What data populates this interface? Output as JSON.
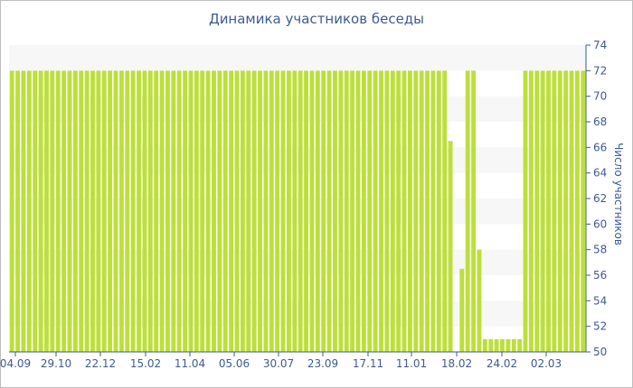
{
  "chart_data": {
    "type": "bar",
    "title": "Динамика участников беседы",
    "ylabel": "Число участников",
    "ylim": [
      50,
      74
    ],
    "yticks": [
      50,
      52,
      54,
      56,
      58,
      60,
      62,
      64,
      66,
      68,
      70,
      72,
      74
    ],
    "x_tick_labels": [
      "04.09",
      "29.10",
      "22.12",
      "15.02",
      "11.04",
      "05.06",
      "30.07",
      "23.09",
      "17.11",
      "11.01",
      "18.02",
      "24.02",
      "02.03"
    ],
    "values": [
      72,
      72,
      72,
      72,
      72,
      72,
      72,
      72,
      72,
      72,
      72,
      72,
      72,
      72,
      72,
      72,
      72,
      72,
      72,
      72,
      72,
      72,
      72,
      72,
      72,
      72,
      72,
      72,
      72,
      72,
      72,
      72,
      72,
      72,
      72,
      72,
      72,
      72,
      72,
      72,
      72,
      72,
      72,
      72,
      72,
      72,
      72,
      72,
      72,
      72,
      72,
      72,
      72,
      72,
      72,
      72,
      72,
      72,
      72,
      72,
      72,
      72,
      72,
      72,
      72,
      72,
      72,
      72,
      72,
      72,
      72,
      72,
      72,
      72,
      72,
      72,
      66.5,
      null,
      56.5,
      72,
      72,
      58,
      51,
      51,
      51,
      51,
      51,
      51,
      51,
      72,
      72,
      72,
      72,
      72,
      72,
      72,
      72,
      72,
      72,
      72
    ],
    "color": "#bddf3a",
    "grid_band_color": "#f7f7f7",
    "axis_side": "right",
    "grid": true
  }
}
